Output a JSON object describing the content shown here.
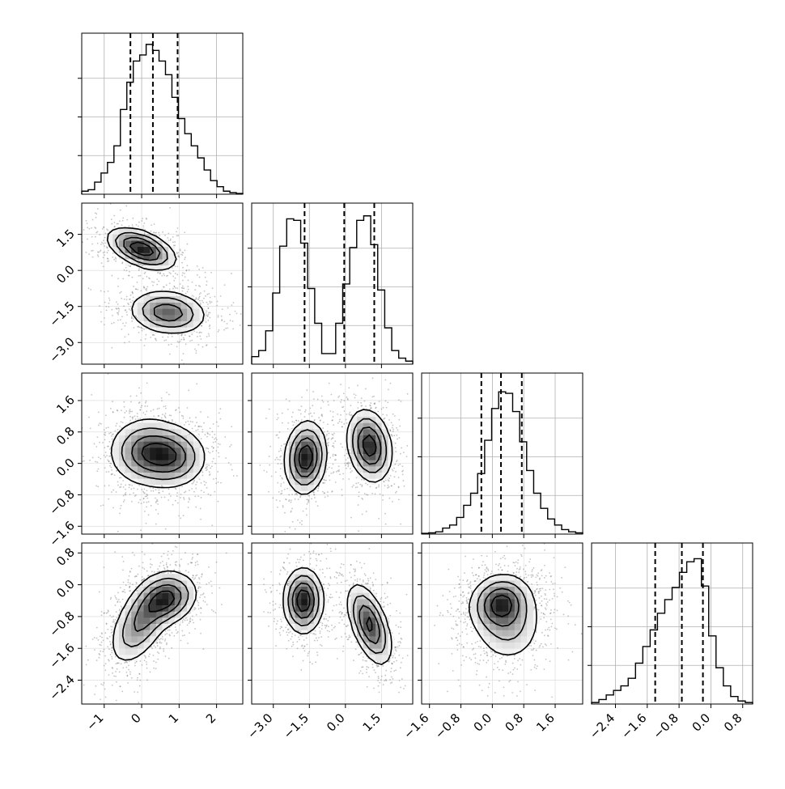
{
  "chart_data": {
    "type": "corner",
    "grid": true,
    "parameters": [
      {
        "range": [
          -1.6,
          2.7
        ],
        "ticks": [
          -1,
          0,
          1,
          2
        ],
        "tick_labels": [
          "−1",
          "0",
          "1",
          "2"
        ],
        "quantiles": [
          -0.3,
          0.3,
          0.96
        ],
        "hist": [
          0.02,
          0.03,
          0.08,
          0.14,
          0.21,
          0.32,
          0.56,
          0.74,
          0.88,
          0.92,
          0.99,
          0.95,
          0.88,
          0.79,
          0.64,
          0.5,
          0.4,
          0.32,
          0.24,
          0.16,
          0.09,
          0.05,
          0.02,
          0.01,
          0.005
        ]
      },
      {
        "range": [
          -3.9,
          2.8
        ],
        "ticks": [
          -3.0,
          -1.5,
          0.0,
          1.5
        ],
        "tick_labels": [
          "−3.0",
          "−1.5",
          "0.0",
          "1.5"
        ],
        "quantiles": [
          -1.7,
          -0.05,
          1.2
        ],
        "hist": [
          0.05,
          0.09,
          0.22,
          0.47,
          0.78,
          0.96,
          0.95,
          0.8,
          0.5,
          0.27,
          0.07,
          0.07,
          0.27,
          0.53,
          0.77,
          0.95,
          0.98,
          0.79,
          0.49,
          0.24,
          0.09,
          0.04,
          0.02
        ]
      },
      {
        "range": [
          -1.8,
          2.3
        ],
        "ticks": [
          -1.6,
          -0.8,
          0.0,
          0.8,
          1.6
        ],
        "tick_labels": [
          "−1.6",
          "−0.8",
          "0.0",
          "0.8",
          "1.6"
        ],
        "quantiles": [
          -0.28,
          0.22,
          0.75
        ],
        "hist": [
          0.005,
          0.008,
          0.015,
          0.04,
          0.06,
          0.11,
          0.19,
          0.27,
          0.4,
          0.62,
          0.83,
          0.94,
          0.93,
          0.81,
          0.61,
          0.42,
          0.27,
          0.17,
          0.1,
          0.06,
          0.03,
          0.015,
          0.008
        ]
      },
      {
        "range": [
          -3.0,
          1.05
        ],
        "ticks": [
          -2.4,
          -1.6,
          -0.8,
          0.0,
          0.8
        ],
        "tick_labels": [
          "−2.4",
          "−1.6",
          "−0.8",
          "0.0",
          "0.8"
        ],
        "quantiles": [
          -1.4,
          -0.73,
          -0.2
        ],
        "hist": [
          0.01,
          0.03,
          0.06,
          0.09,
          0.12,
          0.17,
          0.27,
          0.38,
          0.49,
          0.6,
          0.69,
          0.77,
          0.87,
          0.94,
          0.96,
          0.78,
          0.45,
          0.24,
          0.12,
          0.05,
          0.02,
          0.01
        ]
      }
    ],
    "joint": {
      "1-0": [
        {
          "mx": 0.0,
          "my": 0.9,
          "sx": 0.44,
          "sy": 0.42,
          "rho": -0.5,
          "w": 0.5
        },
        {
          "mx": 0.7,
          "my": -1.75,
          "sx": 0.5,
          "sy": 0.45,
          "rho": -0.15,
          "w": 0.5
        }
      ],
      "2-0": [
        {
          "mx": 0.15,
          "my": 0.3,
          "sx": 0.5,
          "sy": 0.42,
          "rho": 0.0,
          "w": 0.6
        },
        {
          "mx": 0.85,
          "my": 0.15,
          "sx": 0.45,
          "sy": 0.38,
          "rho": 0.0,
          "w": 0.4
        }
      ],
      "2-1": [
        {
          "mx": -1.65,
          "my": 0.15,
          "sx": 0.42,
          "sy": 0.45,
          "rho": 0.1,
          "w": 0.5
        },
        {
          "mx": 1.0,
          "my": 0.45,
          "sx": 0.45,
          "sy": 0.45,
          "rho": -0.2,
          "w": 0.5
        }
      ],
      "3-0": [
        {
          "mx": 0.7,
          "my": -0.35,
          "sx": 0.38,
          "sy": 0.32,
          "rho": 0.2,
          "w": 0.45
        },
        {
          "mx": 0.0,
          "my": -0.9,
          "sx": 0.42,
          "sy": 0.55,
          "rho": 0.55,
          "w": 0.55
        }
      ],
      "3-1": [
        {
          "mx": -1.75,
          "my": -0.4,
          "sx": 0.4,
          "sy": 0.4,
          "rho": 0.0,
          "w": 0.5
        },
        {
          "mx": 1.0,
          "my": -1.0,
          "sx": 0.45,
          "sy": 0.5,
          "rho": -0.55,
          "w": 0.5
        }
      ],
      "3-2": [
        {
          "mx": 0.2,
          "my": -0.45,
          "sx": 0.38,
          "sy": 0.35,
          "rho": 0.1,
          "w": 0.55
        },
        {
          "mx": 0.4,
          "my": -1.0,
          "sx": 0.45,
          "sy": 0.5,
          "rho": 0.0,
          "w": 0.45
        }
      ]
    }
  }
}
